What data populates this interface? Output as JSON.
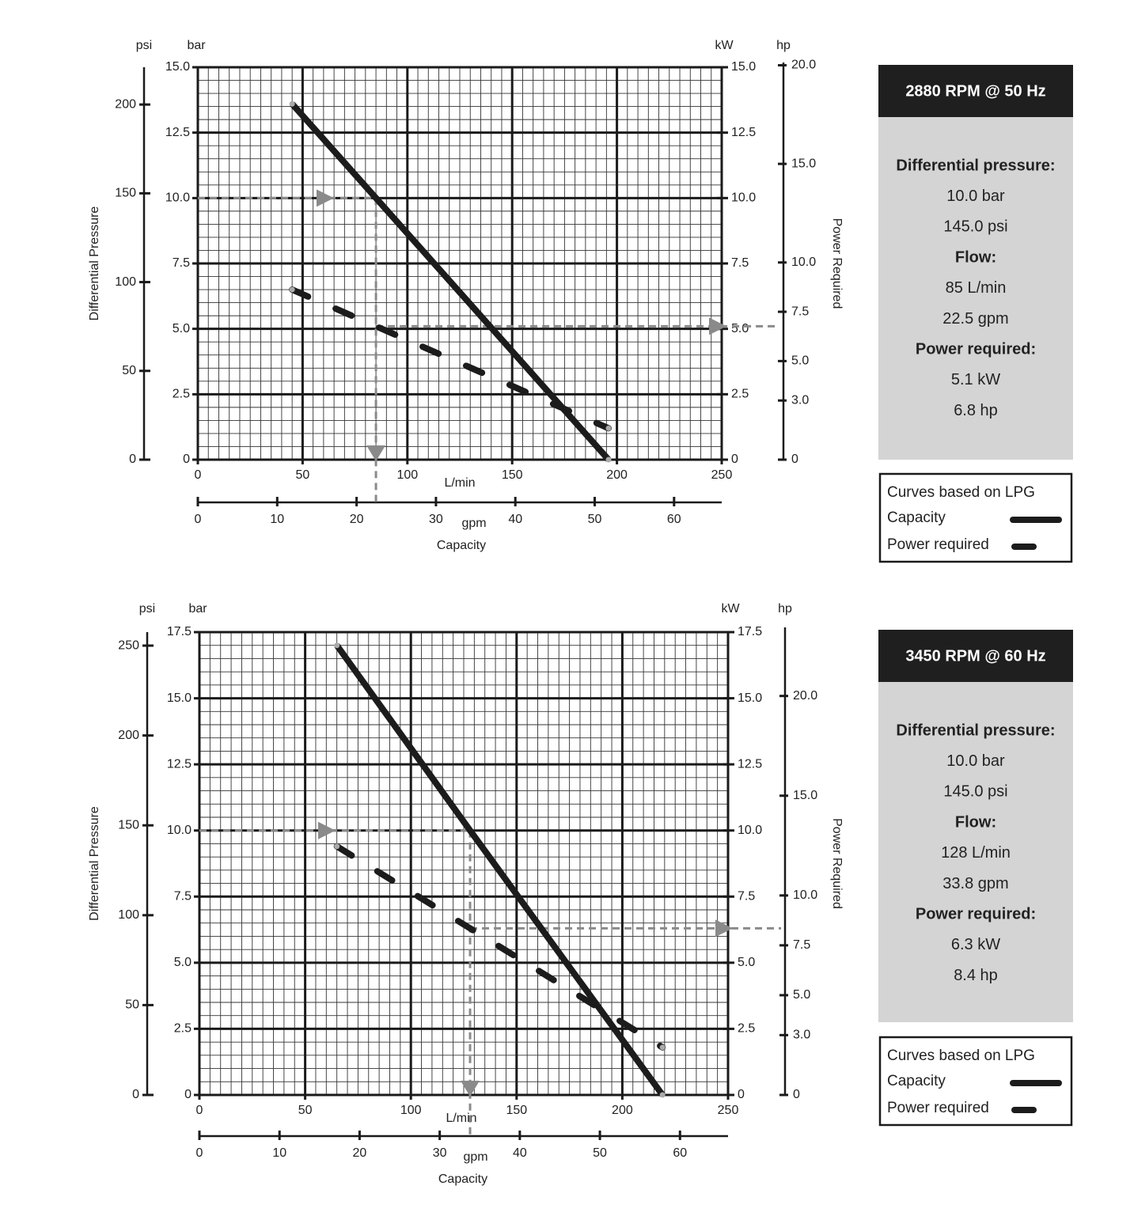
{
  "chart_data": [
    {
      "type": "line",
      "xlim": [
        0,
        250
      ],
      "xticks": [
        0,
        50,
        100,
        150,
        200,
        250
      ],
      "xlabel": "L/min",
      "ylim": [
        0,
        15
      ],
      "yticks": [
        0,
        2.5,
        {
          "value": 5,
          "label": "5.0"
        },
        7.5,
        {
          "value": 10,
          "label": "10.0"
        },
        12.5,
        {
          "value": 15,
          "label": "15.0"
        }
      ],
      "ylabel": "bar",
      "y2lim": [
        0,
        15
      ],
      "y2ticks": [
        0,
        2.5,
        {
          "value": 5,
          "label": "5.0"
        },
        7.5,
        {
          "value": 10,
          "label": "10.0"
        },
        12.5,
        {
          "value": 15,
          "label": "15.0"
        }
      ],
      "y2label": "kW",
      "psi_label": "psi",
      "psi_lim": [
        0,
        221
      ],
      "psi_ticks": [
        0,
        50,
        100,
        150,
        200
      ],
      "hp_label": "hp",
      "hp_lim": [
        0,
        19.9
      ],
      "hp_ticks": [
        0,
        {
          "value": 3,
          "label": "3.0"
        },
        {
          "value": 5,
          "label": "5.0"
        },
        7.5,
        {
          "value": 10,
          "label": "10.0"
        },
        {
          "value": 15,
          "label": "15.0"
        },
        {
          "value": 20,
          "label": "20.0"
        }
      ],
      "gpm_label": "gpm",
      "gpm_lim": [
        0,
        66
      ],
      "gpm_ticks": [
        0,
        10,
        20,
        30,
        40,
        50,
        60
      ],
      "pressure_title": "Differential Pressure",
      "power_title": "Power Required",
      "capacity_title": "Capacity",
      "grid": true,
      "minor_grid": {
        "x": 5,
        "y": 0.5
      },
      "x": [
        45,
        85,
        196
      ],
      "series": [
        {
          "name": "Capacity",
          "color": "#1c1c1c",
          "values": [
            13.6,
            10.0,
            0
          ]
        },
        {
          "name": "Power required",
          "color": "#1c1c1c",
          "axis": "y2",
          "values": [
            6.5,
            5.1,
            1.2
          ]
        }
      ],
      "operating_point": {
        "flow": 85,
        "pressure": 10.0,
        "power": 5.1,
        "gpm": 22.5
      },
      "info": {
        "title": "2880 RPM @ 50 Hz",
        "items": [
          {
            "heading": "Differential pressure:",
            "values": [
              "10.0 bar",
              "145.0 psi"
            ]
          },
          {
            "heading": "Flow:",
            "values": [
              "85 L/min",
              "22.5 gpm"
            ]
          },
          {
            "heading": "Power required:",
            "values": [
              "5.1 kW",
              "6.8 hp"
            ]
          }
        ]
      },
      "note": "Curves based on LPG"
    },
    {
      "type": "line",
      "xlim": [
        0,
        250
      ],
      "xticks": [
        0,
        50,
        100,
        150,
        200,
        250
      ],
      "xlabel": "L/min",
      "ylim": [
        0,
        17.5
      ],
      "yticks": [
        0,
        2.5,
        {
          "value": 5,
          "label": "5.0"
        },
        7.5,
        {
          "value": 10,
          "label": "10.0"
        },
        12.5,
        {
          "value": 15,
          "label": "15.0"
        },
        17.5
      ],
      "ylabel": "bar",
      "y2lim": [
        0,
        17.5
      ],
      "y2ticks": [
        0,
        2.5,
        {
          "value": 5,
          "label": "5.0"
        },
        7.5,
        {
          "value": 10,
          "label": "10.0"
        },
        12.5,
        {
          "value": 15,
          "label": "15.0"
        },
        17.5
      ],
      "y2label": "kW",
      "psi_label": "psi",
      "psi_lim": [
        0,
        257.5
      ],
      "psi_ticks": [
        0,
        50,
        100,
        150,
        200,
        250
      ],
      "hp_label": "hp",
      "hp_lim": [
        0,
        23.2
      ],
      "hp_ticks": [
        0,
        {
          "value": 3,
          "label": "3.0"
        },
        {
          "value": 5,
          "label": "5.0"
        },
        7.5,
        {
          "value": 10,
          "label": "10.0"
        },
        {
          "value": 15,
          "label": "15.0"
        },
        {
          "value": 20,
          "label": "20.0"
        }
      ],
      "gpm_label": "gpm",
      "gpm_lim": [
        0,
        66
      ],
      "gpm_ticks": [
        0,
        10,
        20,
        30,
        40,
        50,
        60
      ],
      "pressure_title": "Differential Pressure",
      "power_title": "Power Required",
      "capacity_title": "Capacity",
      "grid": true,
      "minor_grid": {
        "x": 5,
        "y": 0.5
      },
      "x": [
        65,
        128,
        219
      ],
      "series": [
        {
          "name": "Capacity",
          "color": "#1c1c1c",
          "values": [
            17.0,
            10.0,
            0
          ]
        },
        {
          "name": "Power required",
          "color": "#1c1c1c",
          "axis": "y2",
          "values": [
            9.4,
            6.3,
            1.8
          ]
        }
      ],
      "operating_point": {
        "flow": 128,
        "pressure": 10.0,
        "power": 6.3,
        "gpm": 33.8
      },
      "info": {
        "title": "3450 RPM @ 60 Hz",
        "items": [
          {
            "heading": "Differential pressure:",
            "values": [
              "10.0 bar",
              "145.0 psi"
            ]
          },
          {
            "heading": "Flow:",
            "values": [
              "128 L/min",
              "33.8 gpm"
            ]
          },
          {
            "heading": "Power required:",
            "values": [
              "6.3 kW",
              "8.4 hp"
            ]
          }
        ]
      },
      "note": "Curves based on LPG"
    }
  ]
}
